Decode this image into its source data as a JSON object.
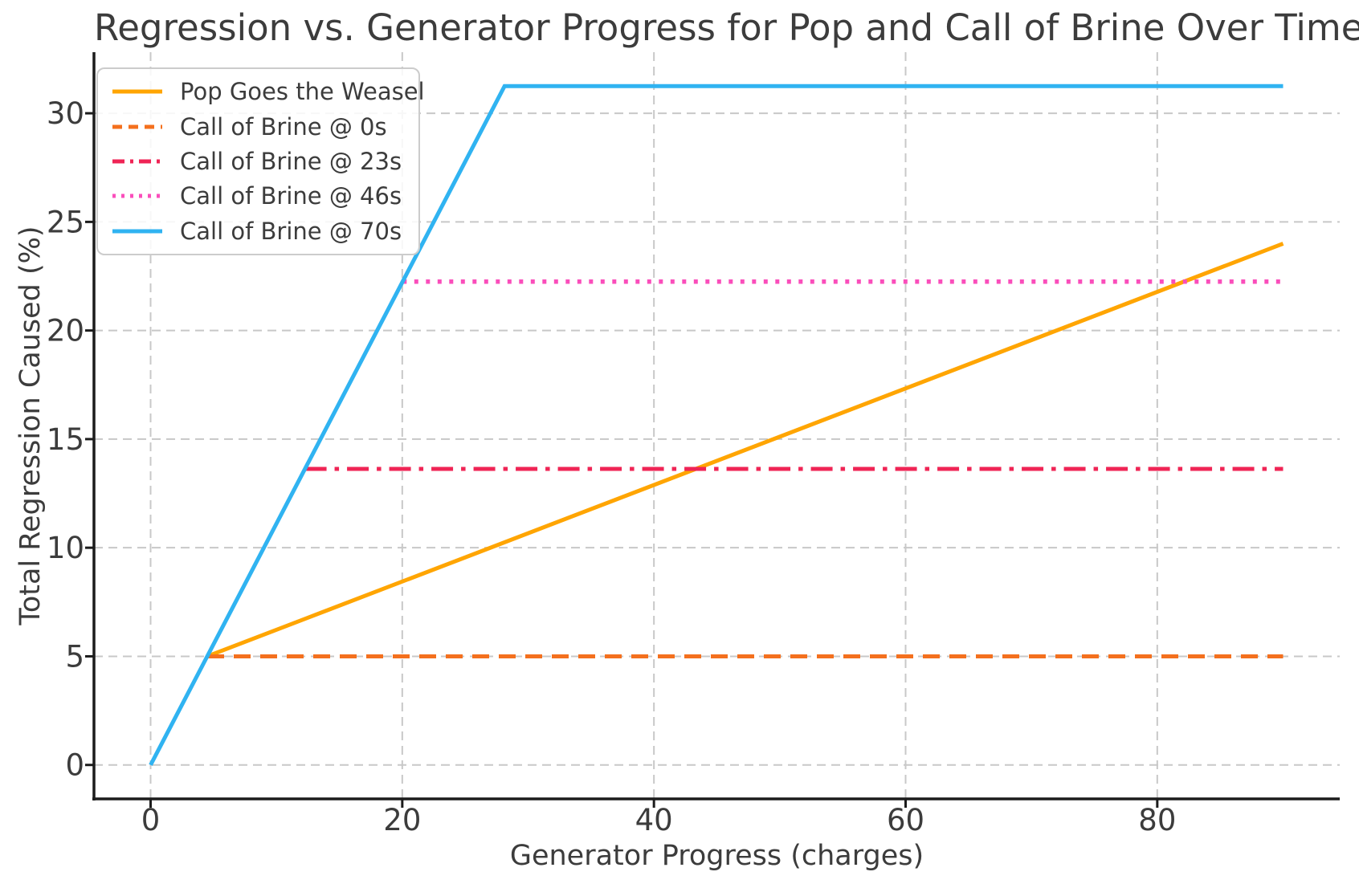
{
  "page": {
    "background": "#FFFFFF"
  },
  "chart_data": {
    "type": "line",
    "title": "Regression vs. Generator Progress for Pop and Call of Brine Over Time",
    "xlabel": "Generator Progress (charges)",
    "ylabel": "Total Regression Caused (%)",
    "xlim": [
      -4.5,
      94.5
    ],
    "ylim": [
      -1.5625,
      32.8125
    ],
    "xticks": [
      0,
      20,
      40,
      60,
      80
    ],
    "yticks": [
      0,
      5,
      10,
      15,
      20,
      25,
      30
    ],
    "grid": true,
    "grid_style": "dashed",
    "legend_position": "upper left",
    "series": [
      {
        "name": "Pop Goes the Weasel",
        "color": "#FFA502",
        "line_style": "solid",
        "points": [
          [
            4.5,
            5.0
          ],
          [
            90,
            24.0
          ]
        ]
      },
      {
        "name": "Call of Brine @ 0s",
        "color": "#F4701E",
        "line_style": "dashed",
        "points": [
          [
            4.5,
            5.0
          ],
          [
            90,
            5.0
          ]
        ]
      },
      {
        "name": "Call of Brine @ 23s",
        "color": "#EF2455",
        "line_style": "dashdot",
        "points": [
          [
            12.26,
            13.63
          ],
          [
            90,
            13.63
          ]
        ]
      },
      {
        "name": "Call of Brine @ 46s",
        "color": "#FA4EBB",
        "line_style": "dotted",
        "points": [
          [
            20.03,
            22.25
          ],
          [
            90,
            22.25
          ]
        ]
      },
      {
        "name": "Call of Brine @ 70s",
        "color": "#30B3F1",
        "line_style": "solid",
        "points": [
          [
            0,
            0
          ],
          [
            28.13,
            31.25
          ],
          [
            90,
            31.25
          ]
        ]
      }
    ],
    "colors": {
      "grid": "#C8C8C8",
      "spine": "#1C1C1C",
      "text": "#3C3C3C",
      "legend_border": "#CCCCCC",
      "legend_bg": "#FFFFFF"
    }
  }
}
